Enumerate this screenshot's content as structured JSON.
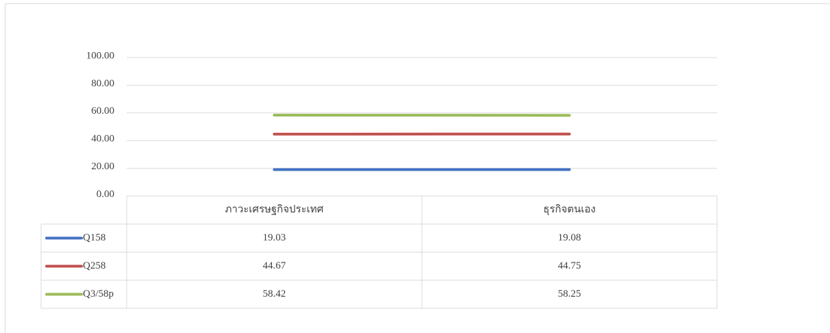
{
  "chart_data": {
    "type": "line",
    "categories": [
      "ภาวะเศรษฐกิจประเทศ",
      "ธุรกิจตนเอง"
    ],
    "series": [
      {
        "name": "Q158",
        "color": "#4472c4",
        "values": [
          19.03,
          19.08
        ]
      },
      {
        "name": "Q258",
        "color": "#c0504d",
        "values": [
          44.67,
          44.75
        ]
      },
      {
        "name": "Q3/58p",
        "color": "#9bbb59",
        "values": [
          58.42,
          58.25
        ]
      }
    ],
    "ylim": [
      0,
      100
    ],
    "yticks": [
      {
        "value": 0,
        "label": "0.00"
      },
      {
        "value": 20,
        "label": "20.00"
      },
      {
        "value": 40,
        "label": "40.00"
      },
      {
        "value": 60,
        "label": "60.00"
      },
      {
        "value": 80,
        "label": "80.00"
      },
      {
        "value": 100,
        "label": "100.00"
      }
    ],
    "grid": true,
    "data_table": true
  }
}
